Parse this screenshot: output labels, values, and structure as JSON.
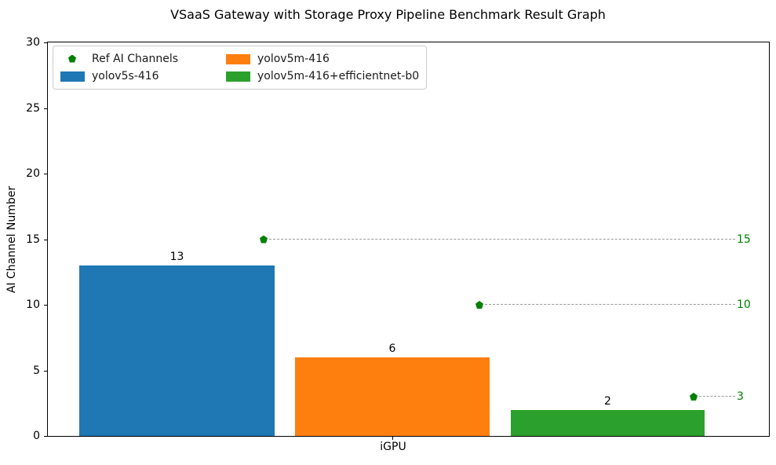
{
  "title": "VSaaS Gateway with Storage Proxy Pipeline Benchmark Result Graph",
  "y_axis": {
    "label": "AI Channel Number",
    "ticks": [
      0,
      5,
      10,
      15,
      20,
      25,
      30
    ]
  },
  "x_axis": {
    "tick_label": "iGPU"
  },
  "legend": {
    "items": [
      {
        "label": "Ref AI Channels",
        "marker": "pentagon-icon",
        "color": "#008000"
      },
      {
        "label": "yolov5s-416",
        "marker": "patch",
        "color": "#1f77b4"
      },
      {
        "label": "yolov5m-416",
        "marker": "patch",
        "color": "#ff7f0e"
      },
      {
        "label": "yolov5m-416+efficientnet-b0",
        "marker": "patch",
        "color": "#2ca02c"
      }
    ]
  },
  "chart_data": {
    "type": "bar",
    "title": "VSaaS Gateway with Storage Proxy Pipeline Benchmark Result Graph",
    "categories": [
      "iGPU"
    ],
    "series": [
      {
        "name": "yolov5s-416",
        "color": "#1f77b4",
        "values": [
          13
        ]
      },
      {
        "name": "yolov5m-416",
        "color": "#ff7f0e",
        "values": [
          6
        ]
      },
      {
        "name": "yolov5m-416+efficientnet-b0",
        "color": "#2ca02c",
        "values": [
          2
        ]
      }
    ],
    "reference_markers": {
      "name": "Ref AI Channels",
      "marker": "pentagon",
      "color": "#008000",
      "values": [
        15,
        10,
        3
      ]
    },
    "xlabel": "",
    "ylabel": "AI Channel Number",
    "ylim": [
      0,
      30
    ],
    "grid": false,
    "legend_position": "upper left",
    "bar_value_labels": [
      13,
      6,
      2
    ]
  },
  "colors": {
    "ref_dash": "#9a9a9a",
    "ref_label": "#008000",
    "spine": "#000000",
    "background": "#ffffff"
  }
}
